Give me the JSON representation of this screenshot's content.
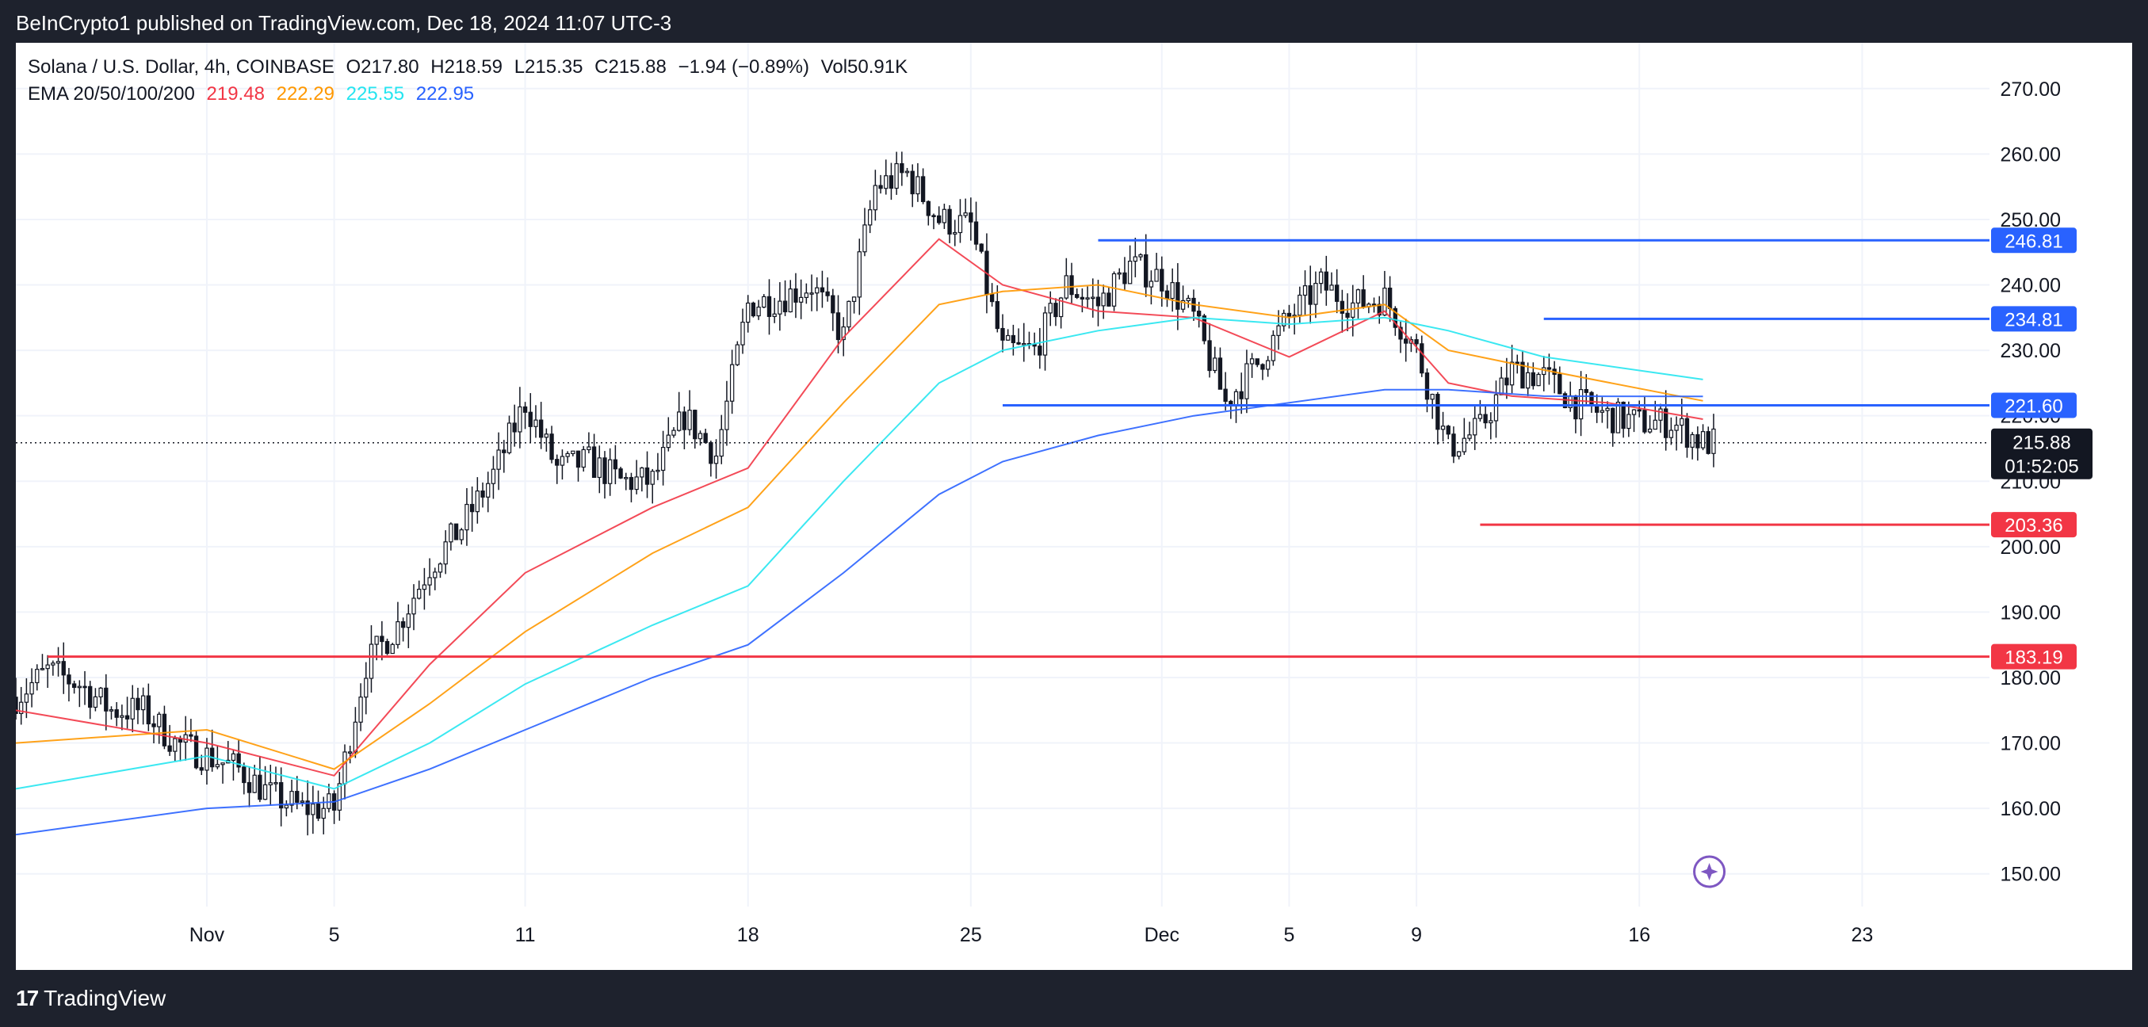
{
  "header": {
    "publisher_line": "BeInCrypto1 published on TradingView.com, Dec 18, 2024 11:07 UTC-3"
  },
  "legend": {
    "symbol": "Solana / U.S. Dollar, 4h, COINBASE",
    "open": "O217.80",
    "high": "H218.59",
    "low": "L215.35",
    "close": "C215.88",
    "change": "−1.94 (−0.89%)",
    "volume": "Vol50.91K",
    "ema_label": "EMA 20/50/100/200",
    "ema20": "219.48",
    "ema50": "222.29",
    "ema100": "225.55",
    "ema200": "222.95"
  },
  "footer": {
    "brand": "TradingView"
  },
  "colors": {
    "ema20": "#f23645",
    "ema50": "#ff9800",
    "ema100": "#26e5f0",
    "ema200": "#2962ff",
    "support": "#f23645",
    "resistance": "#2962ff",
    "candle": "#131722",
    "grid": "#f0f3fa",
    "background": "#ffffff"
  },
  "chart_data": {
    "type": "candlestick",
    "title": "Solana / U.S. Dollar, 4h, COINBASE",
    "ylim": [
      145,
      277
    ],
    "y_ticks": [
      150,
      160,
      170,
      180,
      190,
      200,
      210,
      220,
      230,
      240,
      250,
      260,
      270
    ],
    "y_tick_labels": [
      "150.00",
      "160.00",
      "170.00",
      "180.00",
      "190.00",
      "200.00",
      "210.00",
      "220.00",
      "230.00",
      "240.00",
      "250.00",
      "260.00",
      "270.00"
    ],
    "x_range": [
      "2024-10-26",
      "2024-12-27"
    ],
    "x_ticks": [
      {
        "date": "2024-11-01",
        "label": "Nov"
      },
      {
        "date": "2024-11-05",
        "label": "5"
      },
      {
        "date": "2024-11-11",
        "label": "11"
      },
      {
        "date": "2024-11-18",
        "label": "18"
      },
      {
        "date": "2024-11-25",
        "label": "25"
      },
      {
        "date": "2024-12-01",
        "label": "Dec"
      },
      {
        "date": "2024-12-05",
        "label": "5"
      },
      {
        "date": "2024-12-09",
        "label": "9"
      },
      {
        "date": "2024-12-16",
        "label": "16"
      },
      {
        "date": "2024-12-23",
        "label": "23"
      }
    ],
    "price_path": [
      [
        "2024-10-26",
        177
      ],
      [
        "2024-10-27",
        181
      ],
      [
        "2024-10-28",
        179
      ],
      [
        "2024-10-29",
        175
      ],
      [
        "2024-10-30",
        175
      ],
      [
        "2024-10-31",
        170
      ],
      [
        "2024-11-01",
        168
      ],
      [
        "2024-11-02",
        166
      ],
      [
        "2024-11-03",
        162
      ],
      [
        "2024-11-04",
        160
      ],
      [
        "2024-11-05",
        160
      ],
      [
        "2024-11-06",
        182
      ],
      [
        "2024-11-07",
        188
      ],
      [
        "2024-11-08",
        197
      ],
      [
        "2024-11-09",
        203
      ],
      [
        "2024-11-10",
        211
      ],
      [
        "2024-11-11",
        222
      ],
      [
        "2024-11-12",
        212
      ],
      [
        "2024-11-13",
        213
      ],
      [
        "2024-11-14",
        210
      ],
      [
        "2024-11-15",
        210
      ],
      [
        "2024-11-16",
        220
      ],
      [
        "2024-11-17",
        214
      ],
      [
        "2024-11-18",
        237
      ],
      [
        "2024-11-19",
        238
      ],
      [
        "2024-11-20",
        240
      ],
      [
        "2024-11-21",
        232
      ],
      [
        "2024-11-22",
        255
      ],
      [
        "2024-11-23",
        257
      ],
      [
        "2024-11-24",
        250
      ],
      [
        "2024-11-25",
        249
      ],
      [
        "2024-11-26",
        230
      ],
      [
        "2024-11-27",
        230
      ],
      [
        "2024-11-28",
        240
      ],
      [
        "2024-11-29",
        237
      ],
      [
        "2024-11-30",
        243
      ],
      [
        "2024-12-01",
        241
      ],
      [
        "2024-12-02",
        235
      ],
      [
        "2024-12-03",
        222
      ],
      [
        "2024-12-04",
        228
      ],
      [
        "2024-12-05",
        235
      ],
      [
        "2024-12-06",
        240
      ],
      [
        "2024-12-07",
        237
      ],
      [
        "2024-12-08",
        238
      ],
      [
        "2024-12-09",
        230
      ],
      [
        "2024-12-10",
        215
      ],
      [
        "2024-12-11",
        218
      ],
      [
        "2024-12-12",
        227
      ],
      [
        "2024-12-13",
        226
      ],
      [
        "2024-12-14",
        222
      ],
      [
        "2024-12-15",
        220
      ],
      [
        "2024-12-16",
        219
      ],
      [
        "2024-12-17",
        219
      ],
      [
        "2024-12-18",
        215.88
      ]
    ],
    "ema_series": [
      {
        "name": "EMA 20",
        "color_key": "ema20",
        "points": [
          [
            "2024-10-26",
            175
          ],
          [
            "2024-11-01",
            170
          ],
          [
            "2024-11-05",
            165
          ],
          [
            "2024-11-08",
            182
          ],
          [
            "2024-11-11",
            196
          ],
          [
            "2024-11-15",
            206
          ],
          [
            "2024-11-18",
            212
          ],
          [
            "2024-11-21",
            232
          ],
          [
            "2024-11-24",
            247
          ],
          [
            "2024-11-26",
            240
          ],
          [
            "2024-11-29",
            236
          ],
          [
            "2024-12-02",
            235
          ],
          [
            "2024-12-05",
            229
          ],
          [
            "2024-12-08",
            236
          ],
          [
            "2024-12-10",
            225
          ],
          [
            "2024-12-12",
            223
          ],
          [
            "2024-12-15",
            222
          ],
          [
            "2024-12-18",
            219.48
          ]
        ]
      },
      {
        "name": "EMA 50",
        "color_key": "ema50",
        "points": [
          [
            "2024-10-26",
            170
          ],
          [
            "2024-11-01",
            172
          ],
          [
            "2024-11-05",
            166
          ],
          [
            "2024-11-08",
            176
          ],
          [
            "2024-11-11",
            187
          ],
          [
            "2024-11-15",
            199
          ],
          [
            "2024-11-18",
            206
          ],
          [
            "2024-11-21",
            222
          ],
          [
            "2024-11-24",
            237
          ],
          [
            "2024-11-26",
            239
          ],
          [
            "2024-11-29",
            240
          ],
          [
            "2024-12-02",
            237
          ],
          [
            "2024-12-05",
            235
          ],
          [
            "2024-12-08",
            237
          ],
          [
            "2024-12-10",
            230
          ],
          [
            "2024-12-13",
            227
          ],
          [
            "2024-12-18",
            222.29
          ]
        ]
      },
      {
        "name": "EMA 100",
        "color_key": "ema100",
        "points": [
          [
            "2024-10-26",
            163
          ],
          [
            "2024-11-01",
            168
          ],
          [
            "2024-11-05",
            163
          ],
          [
            "2024-11-08",
            170
          ],
          [
            "2024-11-11",
            179
          ],
          [
            "2024-11-15",
            188
          ],
          [
            "2024-11-18",
            194
          ],
          [
            "2024-11-21",
            210
          ],
          [
            "2024-11-24",
            225
          ],
          [
            "2024-11-26",
            230
          ],
          [
            "2024-11-29",
            233
          ],
          [
            "2024-12-02",
            235
          ],
          [
            "2024-12-05",
            234
          ],
          [
            "2024-12-08",
            235
          ],
          [
            "2024-12-10",
            233
          ],
          [
            "2024-12-13",
            229
          ],
          [
            "2024-12-18",
            225.55
          ]
        ]
      },
      {
        "name": "EMA 200",
        "color_key": "ema200",
        "points": [
          [
            "2024-10-26",
            156
          ],
          [
            "2024-11-01",
            160
          ],
          [
            "2024-11-05",
            161
          ],
          [
            "2024-11-08",
            166
          ],
          [
            "2024-11-11",
            172
          ],
          [
            "2024-11-15",
            180
          ],
          [
            "2024-11-18",
            185
          ],
          [
            "2024-11-21",
            196
          ],
          [
            "2024-11-24",
            208
          ],
          [
            "2024-11-26",
            213
          ],
          [
            "2024-11-29",
            217
          ],
          [
            "2024-12-02",
            220
          ],
          [
            "2024-12-05",
            222
          ],
          [
            "2024-12-08",
            224
          ],
          [
            "2024-12-10",
            224
          ],
          [
            "2024-12-13",
            223
          ],
          [
            "2024-12-18",
            222.95
          ]
        ]
      }
    ],
    "horizontal_levels": [
      {
        "value": 246.81,
        "label": "246.81",
        "color_key": "resistance",
        "from": "2024-11-29"
      },
      {
        "value": 234.81,
        "label": "234.81",
        "color_key": "resistance",
        "from": "2024-12-13"
      },
      {
        "value": 221.6,
        "label": "221.60",
        "color_key": "resistance",
        "from": "2024-11-26"
      },
      {
        "value": 203.36,
        "label": "203.36",
        "color_key": "support",
        "from": "2024-12-11"
      },
      {
        "value": 183.19,
        "label": "183.19",
        "color_key": "support",
        "from": "2024-10-27"
      }
    ],
    "last_price": {
      "value": 215.88,
      "label": "215.88",
      "countdown": "01:52:05",
      "date": "2024-12-18"
    }
  }
}
